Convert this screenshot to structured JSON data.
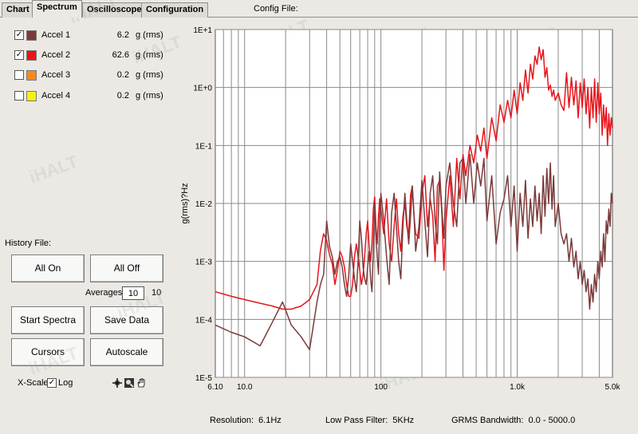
{
  "tabs": [
    {
      "label": "Chart",
      "active": false
    },
    {
      "label": "Spectrum",
      "active": true
    },
    {
      "label": "Oscilloscope",
      "active": false
    },
    {
      "label": "Configuration",
      "active": false
    }
  ],
  "config_file_label": "Config File:",
  "channels": [
    {
      "name": "Accel 1",
      "checked": true,
      "check_mark": "✓",
      "color": "#7b3a3a",
      "value": "6.2",
      "unit": "g (rms)"
    },
    {
      "name": "Accel 2",
      "checked": true,
      "check_mark": "✓",
      "color": "#e8141b",
      "value": "62.6",
      "unit": "g (rms)"
    },
    {
      "name": "Accel 3",
      "checked": false,
      "check_mark": "",
      "color": "#f58a1f",
      "value": "0.2",
      "unit": "g (rms)"
    },
    {
      "name": "Accel 4",
      "checked": false,
      "check_mark": "",
      "color": "#f7f20c",
      "value": "0.2",
      "unit": "g (rms)"
    }
  ],
  "history_file_label": "History File:",
  "buttons": {
    "all_on": "All On",
    "all_off": "All Off",
    "start_spectra": "Start Spectra",
    "save_data": "Save Data",
    "cursors": "Cursors",
    "autoscale": "Autoscale"
  },
  "averages": {
    "label": "Averages",
    "input_value": "10",
    "value": "10"
  },
  "xscale": {
    "label": "X-Scale",
    "log_label": "Log",
    "log_checked": true,
    "check_mark": "✓"
  },
  "watermark": "iHALT",
  "chart_data": {
    "type": "line",
    "title": "",
    "xlabel": "",
    "ylabel": "g(rms)?Hz",
    "x_scale": "log",
    "y_scale": "log",
    "xlim": [
      6.1,
      5000
    ],
    "ylim": [
      1e-05,
      10
    ],
    "x_tick_labels": [
      "6.10",
      "10.0",
      "100",
      "1.0k",
      "5.0k"
    ],
    "x_tick_values": [
      6.1,
      10,
      100,
      1000,
      5000
    ],
    "y_tick_labels": [
      "1E+1",
      "1E+0",
      "1E-1",
      "1E-2",
      "1E-3",
      "1E-4",
      "1E-5"
    ],
    "y_tick_values": [
      10,
      1,
      0.1,
      0.01,
      0.001,
      0.0001,
      1e-05
    ],
    "grid": true,
    "series": [
      {
        "name": "Accel 2",
        "color": "#e8141b",
        "x": [
          6.1,
          8,
          10,
          13,
          16,
          19,
          22,
          26,
          30,
          34,
          36,
          38,
          40,
          42,
          44,
          46,
          48,
          50,
          52,
          54,
          56,
          58,
          60,
          62,
          64,
          66,
          68,
          70,
          72,
          74,
          76,
          78,
          80,
          82,
          84,
          86,
          88,
          90,
          92,
          94,
          96,
          98,
          100,
          105,
          110,
          115,
          120,
          125,
          130,
          135,
          140,
          145,
          150,
          155,
          160,
          165,
          170,
          175,
          180,
          190,
          200,
          210,
          220,
          230,
          240,
          250,
          260,
          270,
          280,
          290,
          300,
          320,
          340,
          360,
          380,
          400,
          420,
          450,
          480,
          510,
          540,
          570,
          600,
          650,
          700,
          750,
          800,
          850,
          900,
          950,
          1000,
          1050,
          1100,
          1150,
          1200,
          1250,
          1300,
          1350,
          1400,
          1450,
          1500,
          1550,
          1600,
          1650,
          1700,
          1750,
          1800,
          1850,
          1900,
          2000,
          2100,
          2200,
          2300,
          2400,
          2500,
          2600,
          2700,
          2800,
          2900,
          3000,
          3100,
          3200,
          3300,
          3400,
          3500,
          3600,
          3700,
          3800,
          3900,
          4000,
          4100,
          4200,
          4300,
          4400,
          4500,
          4600,
          4700,
          4800,
          4900,
          5000
        ],
        "y": [
          0.0003,
          0.00025,
          0.00022,
          0.00019,
          0.00017,
          0.00015,
          0.00015,
          0.00017,
          0.00022,
          0.0004,
          0.00155,
          0.003,
          0.0023,
          0.0013,
          0.0009,
          0.0004,
          0.0007,
          0.0015,
          0.0012,
          0.0008,
          0.0004,
          0.00025,
          0.00025,
          0.0004,
          0.0012,
          0.002,
          0.0012,
          0.0007,
          0.0004,
          0.0006,
          0.0012,
          0.003,
          0.005,
          0.0018,
          0.001,
          0.002,
          0.008,
          0.013,
          0.004,
          0.002,
          0.006,
          0.012,
          0.008,
          0.003,
          0.012,
          0.002,
          0.001,
          0.004,
          0.012,
          0.003,
          0.0015,
          0.006,
          0.01,
          0.004,
          0.003,
          0.014,
          0.02,
          0.006,
          0.003,
          0.0025,
          0.015,
          0.03,
          0.004,
          0.012,
          0.006,
          0.001,
          0.02,
          0.025,
          0.007,
          0.0007,
          0.005,
          0.03,
          0.004,
          0.06,
          0.012,
          0.07,
          0.03,
          0.1,
          0.05,
          0.15,
          0.08,
          0.2,
          0.06,
          0.3,
          0.12,
          0.5,
          0.25,
          0.6,
          0.3,
          0.9,
          0.35,
          1.2,
          0.6,
          2.0,
          0.8,
          2.5,
          1.4,
          3.5,
          2.5,
          5.0,
          3.0,
          4.5,
          1.5,
          2.2,
          0.9,
          1.1,
          0.7,
          0.9,
          0.6,
          0.8,
          0.5,
          0.4,
          1.8,
          0.45,
          1.5,
          0.5,
          1.3,
          0.3,
          1.2,
          0.45,
          1.4,
          0.35,
          1.0,
          0.2,
          1.0,
          0.3,
          1.4,
          0.25,
          1.2,
          0.35,
          0.8,
          0.15,
          0.5,
          0.2,
          0.45,
          0.1,
          0.35,
          0.15,
          0.3,
          0.2
        ]
      },
      {
        "name": "Accel 1",
        "color": "#7b3a3a",
        "x": [
          6.1,
          8,
          10,
          13,
          16,
          19,
          22,
          26,
          30,
          34,
          36,
          38,
          40,
          42,
          44,
          46,
          48,
          50,
          52,
          54,
          56,
          58,
          60,
          62,
          64,
          66,
          68,
          70,
          72,
          74,
          76,
          78,
          80,
          82,
          84,
          86,
          88,
          90,
          92,
          94,
          96,
          98,
          100,
          105,
          110,
          115,
          120,
          125,
          130,
          135,
          140,
          145,
          150,
          155,
          160,
          165,
          170,
          175,
          180,
          190,
          200,
          210,
          220,
          230,
          240,
          250,
          260,
          270,
          280,
          290,
          300,
          320,
          340,
          360,
          380,
          400,
          420,
          450,
          480,
          510,
          540,
          570,
          600,
          650,
          700,
          750,
          800,
          850,
          900,
          950,
          1000,
          1050,
          1100,
          1150,
          1200,
          1250,
          1300,
          1350,
          1400,
          1450,
          1500,
          1550,
          1600,
          1650,
          1700,
          1750,
          1800,
          1850,
          1900,
          2000,
          2100,
          2200,
          2300,
          2400,
          2500,
          2600,
          2700,
          2800,
          2900,
          3000,
          3100,
          3200,
          3300,
          3400,
          3500,
          3600,
          3700,
          3800,
          3900,
          4000,
          4100,
          4200,
          4300,
          4400,
          4500,
          4600,
          4700,
          4800,
          4900,
          5000
        ],
        "y": [
          8e-05,
          6e-05,
          5e-05,
          3.5e-05,
          9e-05,
          0.0002,
          8e-05,
          5e-05,
          3e-05,
          0.0002,
          0.0004,
          0.0006,
          0.005,
          0.0018,
          0.0012,
          0.0006,
          0.001,
          0.0012,
          0.0008,
          0.0004,
          0.00025,
          0.00055,
          0.002,
          0.001,
          0.0005,
          0.0003,
          0.001,
          0.005,
          0.0025,
          0.0008,
          0.0005,
          0.0004,
          0.0008,
          0.0015,
          0.0005,
          0.0003,
          0.0015,
          0.01,
          0.003,
          0.0012,
          0.0006,
          0.005,
          0.015,
          0.005,
          0.0012,
          0.0004,
          0.007,
          0.015,
          0.004,
          0.001,
          0.0005,
          0.004,
          0.015,
          0.005,
          0.002,
          0.006,
          0.02,
          0.006,
          0.0015,
          0.004,
          0.025,
          0.005,
          0.0012,
          0.015,
          0.03,
          0.005,
          0.002,
          0.035,
          0.008,
          0.0025,
          0.02,
          0.05,
          0.01,
          0.004,
          0.05,
          0.06,
          0.01,
          0.07,
          0.01,
          0.05,
          0.02,
          0.06,
          0.005,
          0.03,
          0.002,
          0.007,
          0.012,
          0.03,
          0.004,
          0.02,
          0.0015,
          0.015,
          0.004,
          0.025,
          0.0025,
          0.012,
          0.004,
          0.02,
          0.005,
          0.015,
          0.003,
          0.03,
          0.006,
          0.04,
          0.01,
          0.05,
          0.008,
          0.03,
          0.004,
          0.01,
          0.003,
          0.002,
          0.003,
          0.001,
          0.0025,
          0.0008,
          0.0015,
          0.0005,
          0.001,
          0.0004,
          0.0007,
          0.0003,
          0.0005,
          0.00015,
          0.0004,
          0.0002,
          0.0006,
          0.0003,
          0.001,
          0.0005,
          0.0015,
          0.0008,
          0.003,
          0.001,
          0.005,
          0.003,
          0.008,
          0.004,
          0.015,
          0.01
        ]
      }
    ]
  },
  "status": {
    "resolution_label": "Resolution:",
    "resolution_value": "6.1Hz",
    "lowpass_label": "Low Pass Filter:",
    "lowpass_value": "5KHz",
    "grms_label": "GRMS Bandwidth:",
    "grms_value": "0.0 - 5000.0"
  }
}
